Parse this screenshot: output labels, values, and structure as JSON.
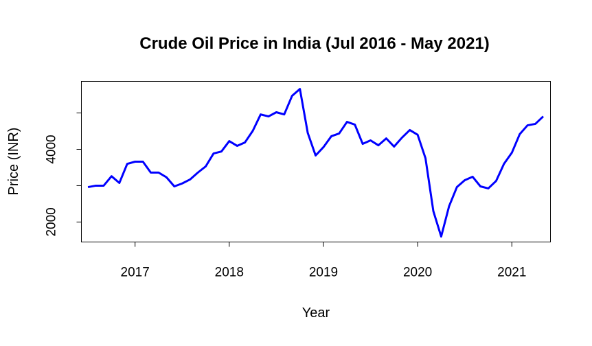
{
  "chart_data": {
    "type": "line",
    "title": "Crude Oil Price in India (Jul 2016 - May 2021)",
    "xlabel": "Year",
    "ylabel": "Price (INR)",
    "x_start": 2016.5,
    "x_step_months": 1,
    "xlim": [
      2016.43,
      2021.41
    ],
    "ylim": [
      1450,
      5870
    ],
    "x_ticks": [
      2017,
      2018,
      2019,
      2020,
      2021
    ],
    "x_tick_labels": [
      "2017",
      "2018",
      "2019",
      "2020",
      "2021"
    ],
    "y_ticks": [
      2000,
      3000,
      4000,
      5000
    ],
    "y_tick_labels": [
      "2000",
      "",
      "4000",
      ""
    ],
    "grid": false,
    "series": [
      {
        "name": "Price",
        "color": "#0000ff",
        "values": [
          2960,
          3000,
          3000,
          3260,
          3075,
          3600,
          3660,
          3660,
          3360,
          3360,
          3230,
          2980,
          3060,
          3170,
          3360,
          3530,
          3885,
          3940,
          4225,
          4095,
          4190,
          4510,
          4960,
          4905,
          5020,
          4960,
          5470,
          5660,
          4450,
          3830,
          4060,
          4360,
          4435,
          4755,
          4680,
          4150,
          4245,
          4110,
          4300,
          4075,
          4320,
          4530,
          4400,
          3755,
          2300,
          1600,
          2430,
          2960,
          3150,
          3245,
          2980,
          2925,
          3130,
          3600,
          3905,
          4415,
          4660,
          4700,
          4905
        ]
      }
    ]
  }
}
